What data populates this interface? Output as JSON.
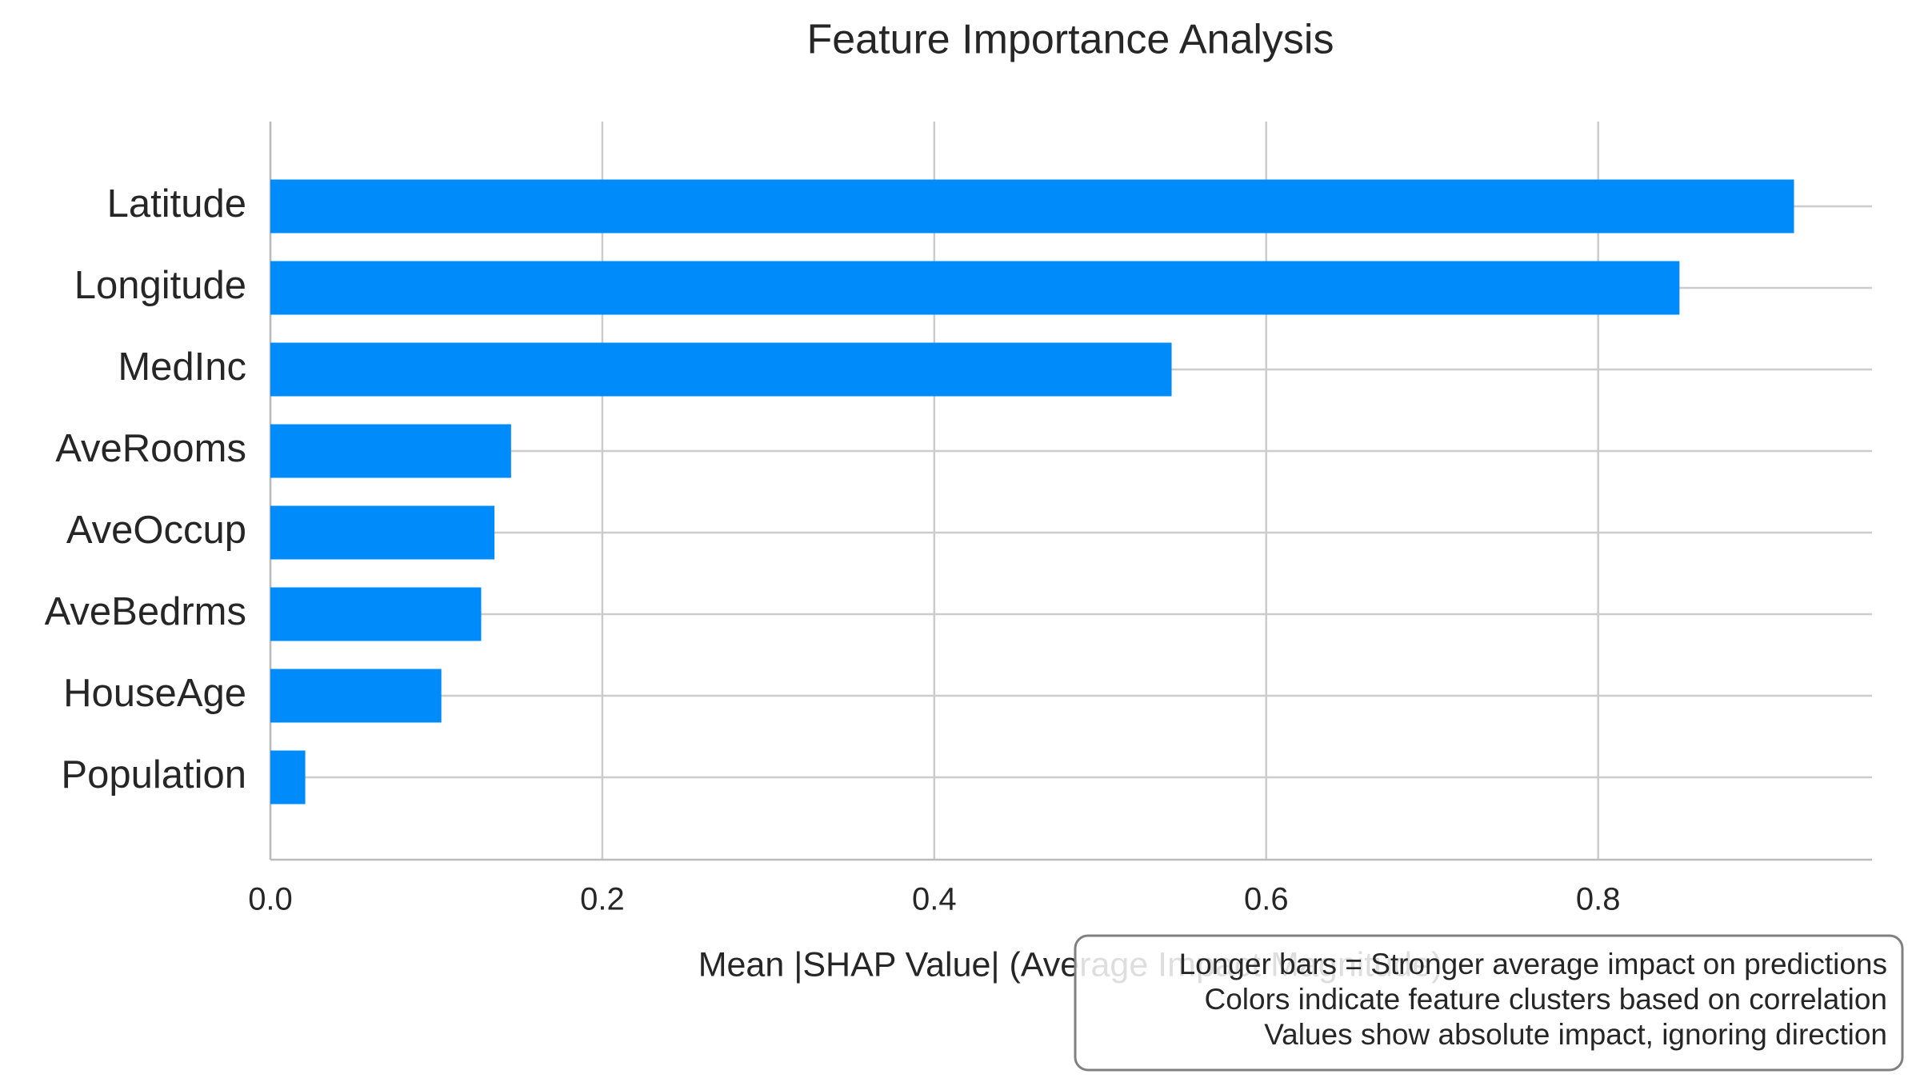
{
  "chart_data": {
    "type": "bar",
    "orientation": "horizontal",
    "title": "Feature Importance Analysis",
    "categories": [
      "Latitude",
      "Longitude",
      "MedInc",
      "AveRooms",
      "AveOccup",
      "AveBedrms",
      "HouseAge",
      "Population"
    ],
    "values": [
      0.918,
      0.849,
      0.543,
      0.145,
      0.135,
      0.127,
      0.103,
      0.021
    ],
    "color": "#008bfb",
    "xlim": [
      0,
      0.965
    ],
    "xticks": [
      {
        "value": 0,
        "label": "0.0"
      },
      0.2,
      0.4,
      0.6,
      0.8
    ],
    "xlabel": "Mean |SHAP Value| (Average Impact Magnitude)",
    "grid": true,
    "annotation": [
      "Longer bars = Stronger average impact on predictions",
      "Colors indicate feature clusters based on correlation",
      "Values show absolute impact, ignoring direction"
    ]
  }
}
